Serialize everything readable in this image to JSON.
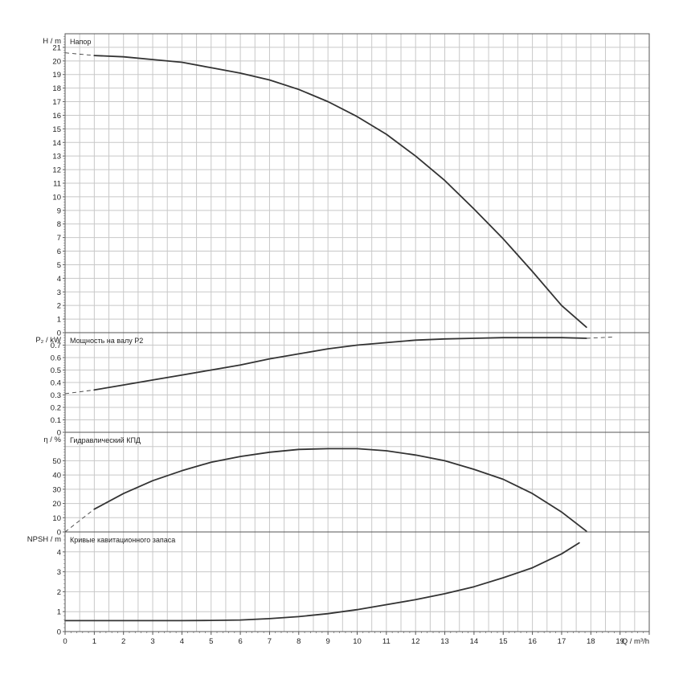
{
  "chart_data": {
    "type": "line",
    "x_axis": {
      "label": "Q / m³/h",
      "range": [
        0,
        20
      ],
      "ticks": [
        "0",
        "1",
        "2",
        "3",
        "4",
        "5",
        "6",
        "7",
        "8",
        "9",
        "10",
        "11",
        "12",
        "13",
        "14",
        "15",
        "16",
        "17",
        "18",
        "19"
      ]
    },
    "panels": [
      {
        "key": "head",
        "title": "Напор",
        "ylabel": "H / m",
        "ylim": [
          0,
          22
        ],
        "yticks": [
          "0",
          "1",
          "2",
          "3",
          "4",
          "5",
          "6",
          "7",
          "8",
          "9",
          "10",
          "11",
          "12",
          "13",
          "14",
          "15",
          "16",
          "17",
          "18",
          "19",
          "20",
          "21"
        ],
        "series": [
          {
            "x": [
              1,
              2,
              3,
              4,
              5,
              6,
              7,
              8,
              9,
              10,
              11,
              12,
              13,
              14,
              15,
              16,
              17,
              17.85
            ],
            "y": [
              20.4,
              20.3,
              20.1,
              19.9,
              19.5,
              19.1,
              18.6,
              17.9,
              17.0,
              15.9,
              14.6,
              13.0,
              11.2,
              9.1,
              6.9,
              4.5,
              2.0,
              0.4
            ]
          }
        ],
        "dashed": {
          "x": [
            0,
            1
          ],
          "y": [
            20.6,
            20.4
          ]
        }
      },
      {
        "key": "power",
        "title": "Мощность на валу P2",
        "ylabel": "P₂ / kW",
        "ylim": [
          0,
          0.8
        ],
        "yticks": [
          "0",
          "0.1",
          "0.2",
          "0.3",
          "0.4",
          "0.5",
          "0.6",
          "0.7"
        ],
        "series": [
          {
            "x": [
              1,
              2,
              3,
              4,
              5,
              6,
              7,
              8,
              9,
              10,
              11,
              12,
              13,
              14,
              15,
              16,
              17,
              17.85
            ],
            "y": [
              0.34,
              0.38,
              0.42,
              0.46,
              0.5,
              0.54,
              0.59,
              0.63,
              0.67,
              0.7,
              0.72,
              0.74,
              0.75,
              0.755,
              0.76,
              0.76,
              0.76,
              0.755
            ]
          }
        ],
        "dashed_start": {
          "x": [
            0,
            1
          ],
          "y": [
            0.31,
            0.34
          ]
        },
        "dashed_end": {
          "x": [
            17.85,
            18.8
          ],
          "y": [
            0.755,
            0.765
          ]
        }
      },
      {
        "key": "efficiency",
        "title": "Гидравлический КПД",
        "ylabel": "η / %",
        "ylim": [
          0,
          70
        ],
        "yticks": [
          "0",
          "10",
          "20",
          "30",
          "40",
          "50"
        ],
        "series": [
          {
            "x": [
              1,
              2,
              3,
              4,
              5,
              6,
              7,
              8,
              9,
              10,
              11,
              12,
              13,
              14,
              15,
              16,
              17,
              17.85
            ],
            "y": [
              16,
              27,
              36,
              43,
              49,
              53,
              56,
              58,
              58.5,
              58.5,
              57,
              54,
              50,
              44,
              37,
              27,
              14,
              0.5
            ]
          }
        ],
        "dashed": {
          "x": [
            0,
            1
          ],
          "y": [
            0,
            16
          ]
        }
      },
      {
        "key": "npsh",
        "title": "Кривые кавитационного запаса",
        "ylabel": "NPSH / m",
        "ylim": [
          0,
          5
        ],
        "yticks": [
          "0",
          "1",
          "2",
          "3",
          "4"
        ],
        "series": [
          {
            "x": [
              0,
              1,
              2,
              3,
              4,
              5,
              6,
              7,
              8,
              9,
              10,
              11,
              12,
              13,
              14,
              15,
              16,
              17,
              17.6
            ],
            "y": [
              0.55,
              0.55,
              0.55,
              0.55,
              0.55,
              0.56,
              0.58,
              0.65,
              0.75,
              0.9,
              1.1,
              1.35,
              1.6,
              1.9,
              2.25,
              2.7,
              3.2,
              3.9,
              4.45
            ]
          }
        ]
      }
    ]
  }
}
